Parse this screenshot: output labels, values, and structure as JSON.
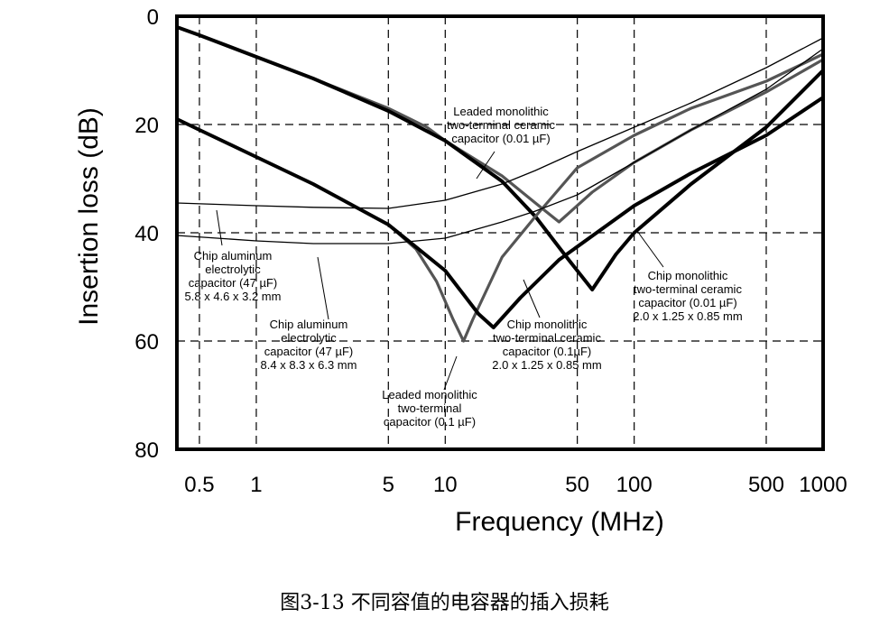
{
  "caption": "图3-13  不同容值的电容器的插入损耗",
  "chart_data": {
    "type": "line",
    "xlabel": "Frequency (MHz)",
    "ylabel": "Insertion loss (dB)",
    "x_scale": "log",
    "xlim": [
      0.38,
      1000
    ],
    "ylim": [
      0,
      80
    ],
    "y_inverted": true,
    "grid": true,
    "x_ticks": [
      0.5,
      1,
      5,
      10,
      50,
      100,
      500,
      1000
    ],
    "x_tick_labels": [
      "0.5",
      "1",
      "5",
      "10",
      "50",
      "100",
      "500",
      "1000"
    ],
    "y_ticks": [
      0,
      20,
      40,
      60,
      80
    ],
    "y_tick_labels": [
      "0",
      "20",
      "40",
      "60",
      "80"
    ],
    "series": [
      {
        "color": "#555555",
        "style": "gray-thick",
        "x": [
          0.38,
          0.5,
          1,
          2,
          5,
          8,
          10,
          20,
          30,
          40,
          60,
          100,
          200,
          500,
          1000
        ],
        "y": [
          2,
          3.5,
          7.5,
          11.5,
          17,
          20.5,
          23,
          29.5,
          34.5,
          38,
          32.5,
          27,
          21,
          14,
          8
        ]
      },
      {
        "color": "#000000",
        "style": "black-thick",
        "x": [
          0.38,
          0.5,
          1,
          2,
          5,
          10,
          20,
          30,
          45,
          60,
          80,
          100,
          200,
          500,
          1000
        ],
        "y": [
          2,
          3.5,
          7.5,
          11.5,
          17.5,
          23,
          30.5,
          37,
          45,
          50.5,
          44,
          40,
          31,
          20.5,
          10
        ]
      },
      {
        "color": "#555555",
        "style": "gray-thick",
        "x": [
          0.38,
          0.5,
          1,
          2,
          5,
          7,
          9,
          11,
          12.5,
          14,
          20,
          30,
          50,
          100,
          200,
          500,
          1000
        ],
        "y": [
          19,
          21,
          26,
          31,
          38.5,
          43,
          49,
          56,
          60,
          56,
          44.5,
          37,
          28,
          22,
          17,
          12,
          7
        ]
      },
      {
        "color": "#000000",
        "style": "black-thick",
        "x": [
          0.38,
          0.5,
          1,
          2,
          5,
          10,
          15,
          18,
          25,
          40,
          100,
          200,
          500,
          1000
        ],
        "y": [
          19,
          21,
          26,
          31,
          38.5,
          47,
          55,
          57.5,
          52,
          45,
          35,
          29,
          22,
          15
        ]
      },
      {
        "color": "#000000",
        "style": "black-thin",
        "x": [
          0.38,
          1,
          2,
          5,
          10,
          20,
          30,
          50,
          100,
          200,
          500,
          1000
        ],
        "y": [
          34.5,
          35,
          35.3,
          35.5,
          34,
          31,
          28.5,
          25,
          20.5,
          16,
          9.5,
          4
        ]
      },
      {
        "color": "#000000",
        "style": "black-thin",
        "x": [
          0.38,
          1,
          2,
          5,
          10,
          20,
          30,
          50,
          100,
          200,
          500,
          1000
        ],
        "y": [
          40.5,
          41.5,
          42,
          42,
          41,
          38,
          36,
          33,
          27,
          21,
          13.5,
          6
        ]
      }
    ],
    "annotations": [
      {
        "lines": [
          "Leaded monolithic",
          "two-terminal ceramic",
          "capacitor (0.01 µF)"
        ]
      },
      {
        "lines": [
          "Chip aluminum",
          "electrolytic",
          "capacitor (47 µF)",
          "5.8 x 4.6 x 3.2 mm"
        ]
      },
      {
        "lines": [
          "Chip aluminum",
          "electrolytic",
          "capacitor (47 µF)",
          "8.4 x 8.3 x 6.3 mm"
        ]
      },
      {
        "lines": [
          "Chip monolithic",
          "two-terminal ceramic",
          "capacitor (0.01 µF)",
          "2.0 x 1.25 x 0.85 mm"
        ]
      },
      {
        "lines": [
          "Chip monolithic",
          "two-terminal ceramic",
          "capacitor (0.1µF)",
          "2.0 x 1.25 x 0.85 mm"
        ]
      },
      {
        "lines": [
          "Leaded monolithic",
          "two-terminal",
          "capacitor (0.1 µF)"
        ]
      }
    ]
  }
}
